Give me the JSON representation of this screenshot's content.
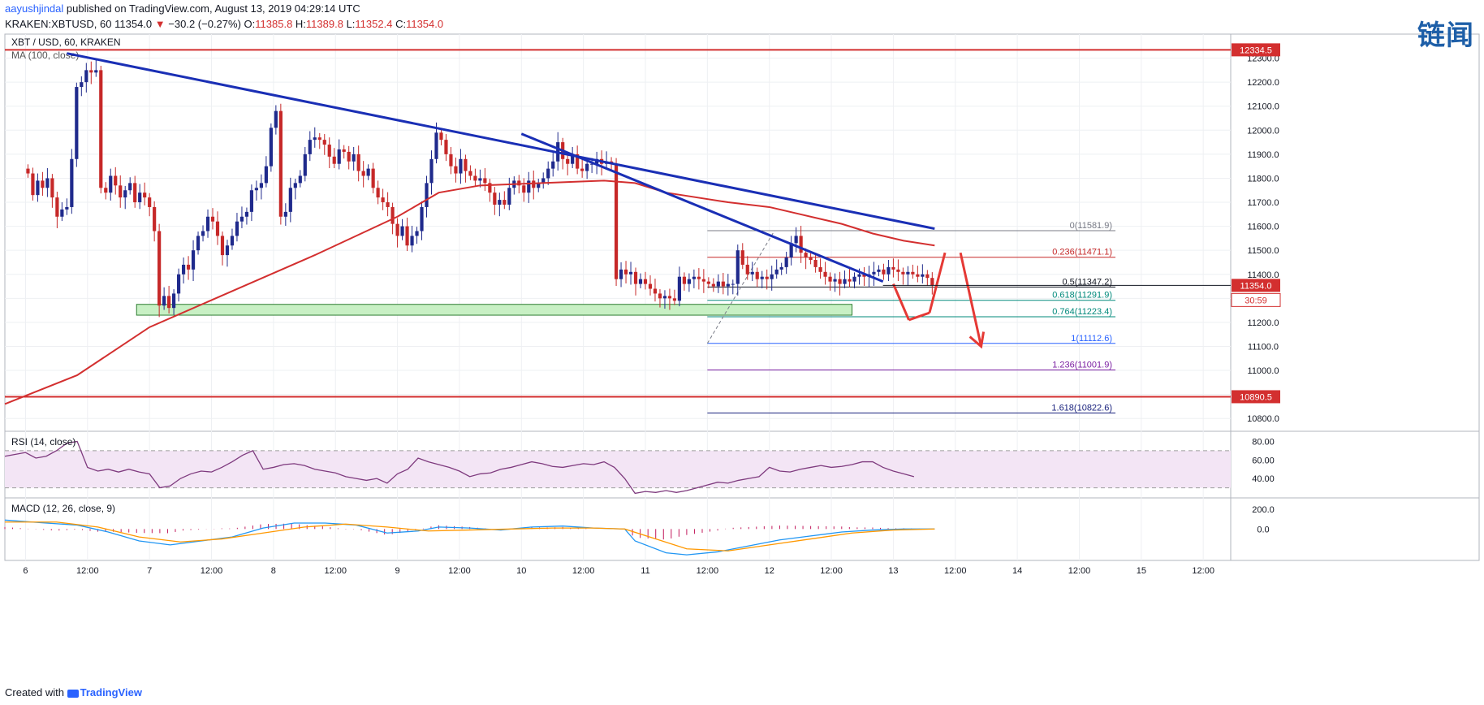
{
  "header": {
    "author": "aayushjindal",
    "published_text": "published on TradingView.com, August 13, 2019 04:29:14 UTC",
    "symbol": "KRAKEN:XBTUSD, 60",
    "last_price": "11354.0",
    "change_arrow": "▼",
    "change_text": "−30.2 (−0.27%)",
    "o_label": "O:",
    "o_value": "11385.8",
    "h_label": "H:",
    "h_value": "11389.8",
    "l_label": "L:",
    "l_value": "11352.4",
    "c_label": "C:",
    "c_value": "11354.0"
  },
  "watermark": "链闻",
  "footer": {
    "created_with": "Created with",
    "brand": "TradingView"
  },
  "chart_data": {
    "type": "candlestick",
    "title": "XBT / USD, 60, KRAKEN",
    "overlay_label": "MA (100, close)",
    "ylim": [
      10750,
      12400
    ],
    "y_ticks": [
      10800,
      10900,
      11000,
      11100,
      11200,
      11300,
      11400,
      11500,
      11600,
      11700,
      11800,
      11900,
      12000,
      12100,
      12200,
      12300
    ],
    "x_ticks": [
      "6",
      "12:00",
      "7",
      "12:00",
      "8",
      "12:00",
      "9",
      "12:00",
      "10",
      "12:00",
      "11",
      "12:00",
      "12",
      "12:00",
      "13",
      "12:00",
      "14",
      "12:00",
      "15",
      "12:00"
    ],
    "x_tick_hours": [
      0,
      12,
      24,
      36,
      48,
      60,
      72,
      84,
      96,
      108,
      120,
      132,
      144,
      156,
      168,
      180,
      192,
      204,
      216,
      228
    ],
    "hour_range": [
      -4,
      233
    ],
    "candle_closes": [
      11820,
      11730,
      11790,
      11760,
      11800,
      11720,
      11640,
      11670,
      11680,
      11880,
      12180,
      12200,
      12250,
      12240,
      12250,
      11760,
      11740,
      11810,
      11770,
      11720,
      11750,
      11780,
      11700,
      11740,
      11720,
      11680,
      11580,
      11270,
      11310,
      11260,
      11320,
      11400,
      11440,
      11420,
      11500,
      11560,
      11580,
      11640,
      11620,
      11560,
      11480,
      11520,
      11560,
      11620,
      11640,
      11660,
      11750,
      11760,
      11780,
      11850,
      12010,
      12080,
      11640,
      11660,
      11760,
      11780,
      11810,
      11900,
      11960,
      11970,
      11960,
      11940,
      11890,
      11860,
      11920,
      11910,
      11870,
      11900,
      11830,
      11810,
      11840,
      11760,
      11720,
      11700,
      11680,
      11610,
      11560,
      11600,
      11520,
      11560,
      11580,
      11680,
      11780,
      11880,
      11990,
      11960,
      11900,
      11850,
      11820,
      11880,
      11830,
      11810,
      11790,
      11800,
      11780,
      11740,
      11690,
      11710,
      11690,
      11760,
      11790,
      11770,
      11740,
      11790,
      11760,
      11780,
      11800,
      11840,
      11870,
      11950,
      11880,
      11860,
      11900,
      11840,
      11830,
      11860,
      11860,
      11880,
      11860,
      11870,
      11860,
      11380,
      11420,
      11400,
      11410,
      11360,
      11380,
      11360,
      11340,
      11320,
      11300,
      11310,
      11300,
      11290,
      11390,
      11360,
      11380,
      11390,
      11380,
      11370,
      11360,
      11350,
      11370,
      11350,
      11360,
      11360,
      11500,
      11440,
      11400,
      11410,
      11380,
      11390,
      11380,
      11400,
      11420,
      11430,
      11470,
      11530,
      11560,
      11490,
      11470,
      11460,
      11430,
      11410,
      11390,
      11370,
      11380,
      11360,
      11380,
      11370,
      11390,
      11400,
      11390,
      11400,
      11410,
      11420,
      11400,
      11430,
      11420,
      11410,
      11400,
      11410,
      11400,
      11390,
      11400,
      11385,
      11354
    ],
    "ma100": [
      [
        -4,
        10860
      ],
      [
        10,
        10980
      ],
      [
        24,
        11180
      ],
      [
        40,
        11330
      ],
      [
        56,
        11480
      ],
      [
        72,
        11640
      ],
      [
        80,
        11740
      ],
      [
        88,
        11770
      ],
      [
        100,
        11780
      ],
      [
        112,
        11790
      ],
      [
        118,
        11780
      ],
      [
        124,
        11740
      ],
      [
        136,
        11700
      ],
      [
        144,
        11680
      ],
      [
        150,
        11650
      ],
      [
        158,
        11610
      ],
      [
        164,
        11570
      ],
      [
        170,
        11540
      ],
      [
        176,
        11520
      ]
    ],
    "rsi_label": "RSI (14, close)",
    "rsi_ticks": [
      40,
      60,
      80
    ],
    "rsi_bands": [
      30,
      70
    ],
    "rsi_values": [
      [
        -4,
        64
      ],
      [
        0,
        68
      ],
      [
        2,
        62
      ],
      [
        4,
        64
      ],
      [
        6,
        70
      ],
      [
        8,
        78
      ],
      [
        10,
        80
      ],
      [
        12,
        52
      ],
      [
        14,
        48
      ],
      [
        16,
        50
      ],
      [
        18,
        47
      ],
      [
        20,
        50
      ],
      [
        22,
        47
      ],
      [
        24,
        45
      ],
      [
        26,
        30
      ],
      [
        28,
        32
      ],
      [
        30,
        40
      ],
      [
        32,
        45
      ],
      [
        34,
        48
      ],
      [
        36,
        47
      ],
      [
        38,
        52
      ],
      [
        40,
        58
      ],
      [
        42,
        65
      ],
      [
        44,
        70
      ],
      [
        46,
        50
      ],
      [
        48,
        52
      ],
      [
        50,
        55
      ],
      [
        52,
        56
      ],
      [
        54,
        54
      ],
      [
        56,
        50
      ],
      [
        58,
        48
      ],
      [
        60,
        46
      ],
      [
        62,
        42
      ],
      [
        64,
        40
      ],
      [
        66,
        38
      ],
      [
        68,
        40
      ],
      [
        70,
        35
      ],
      [
        72,
        45
      ],
      [
        74,
        50
      ],
      [
        76,
        62
      ],
      [
        78,
        58
      ],
      [
        80,
        55
      ],
      [
        82,
        52
      ],
      [
        84,
        48
      ],
      [
        86,
        42
      ],
      [
        88,
        45
      ],
      [
        90,
        46
      ],
      [
        92,
        50
      ],
      [
        94,
        52
      ],
      [
        96,
        55
      ],
      [
        98,
        58
      ],
      [
        100,
        56
      ],
      [
        102,
        53
      ],
      [
        104,
        52
      ],
      [
        106,
        54
      ],
      [
        108,
        56
      ],
      [
        110,
        55
      ],
      [
        112,
        58
      ],
      [
        114,
        52
      ],
      [
        116,
        40
      ],
      [
        118,
        24
      ],
      [
        120,
        26
      ],
      [
        122,
        25
      ],
      [
        124,
        27
      ],
      [
        126,
        25
      ],
      [
        128,
        27
      ],
      [
        130,
        30
      ],
      [
        132,
        33
      ],
      [
        134,
        36
      ],
      [
        136,
        35
      ],
      [
        138,
        38
      ],
      [
        140,
        40
      ],
      [
        142,
        42
      ],
      [
        144,
        52
      ],
      [
        146,
        48
      ],
      [
        148,
        47
      ],
      [
        150,
        50
      ],
      [
        152,
        52
      ],
      [
        154,
        54
      ],
      [
        156,
        52
      ],
      [
        158,
        53
      ],
      [
        160,
        55
      ],
      [
        162,
        58
      ],
      [
        164,
        58
      ],
      [
        166,
        52
      ],
      [
        168,
        48
      ],
      [
        170,
        45
      ],
      [
        172,
        42
      ]
    ],
    "macd_label": "MACD (12, 26, close, 9)",
    "macd_ticks": [
      0,
      200
    ],
    "macd_line": [
      [
        -4,
        90
      ],
      [
        4,
        60
      ],
      [
        10,
        40
      ],
      [
        16,
        -30
      ],
      [
        22,
        -120
      ],
      [
        28,
        -160
      ],
      [
        34,
        -120
      ],
      [
        40,
        -80
      ],
      [
        46,
        10
      ],
      [
        52,
        60
      ],
      [
        58,
        60
      ],
      [
        64,
        40
      ],
      [
        70,
        -40
      ],
      [
        76,
        -20
      ],
      [
        80,
        20
      ],
      [
        86,
        10
      ],
      [
        92,
        -10
      ],
      [
        98,
        20
      ],
      [
        104,
        30
      ],
      [
        110,
        10
      ],
      [
        116,
        0
      ],
      [
        118,
        -120
      ],
      [
        124,
        -240
      ],
      [
        128,
        -260
      ],
      [
        134,
        -230
      ],
      [
        140,
        -170
      ],
      [
        146,
        -110
      ],
      [
        152,
        -70
      ],
      [
        158,
        -30
      ],
      [
        164,
        -10
      ],
      [
        170,
        0
      ],
      [
        176,
        0
      ]
    ],
    "signal_line": [
      [
        -4,
        70
      ],
      [
        6,
        70
      ],
      [
        14,
        20
      ],
      [
        22,
        -80
      ],
      [
        30,
        -130
      ],
      [
        38,
        -100
      ],
      [
        46,
        -40
      ],
      [
        54,
        20
      ],
      [
        62,
        50
      ],
      [
        70,
        20
      ],
      [
        78,
        -20
      ],
      [
        86,
        -10
      ],
      [
        94,
        0
      ],
      [
        102,
        10
      ],
      [
        110,
        10
      ],
      [
        116,
        0
      ],
      [
        122,
        -100
      ],
      [
        128,
        -200
      ],
      [
        136,
        -220
      ],
      [
        144,
        -160
      ],
      [
        152,
        -100
      ],
      [
        160,
        -40
      ],
      [
        168,
        -10
      ],
      [
        176,
        0
      ]
    ],
    "annotations": {
      "resistance_top": "12334.5",
      "support_bottom": "10890.5",
      "price_tag": "11354.0",
      "timer_tag": "30:59",
      "fib_levels": [
        {
          "label": "0(11581.9)",
          "value": 11581.9,
          "color": "#787b86"
        },
        {
          "label": "0.236(11471.1)",
          "value": 11471.1,
          "color": "#c62828"
        },
        {
          "label": "0.5(11347.2)",
          "value": 11347.2,
          "color": "#131722"
        },
        {
          "label": "0.618(11291.9)",
          "value": 11291.9,
          "color": "#00897b"
        },
        {
          "label": "0.764(11223.4)",
          "value": 11223.4,
          "color": "#00897b"
        },
        {
          "label": "1(11112.6)",
          "value": 11112.6,
          "color": "#2962ff"
        },
        {
          "label": "1.236(11001.9)",
          "value": 11001.9,
          "color": "#7b1fa2"
        },
        {
          "label": "1.618(10822.6)",
          "value": 10822.6,
          "color": "#1a237e"
        }
      ],
      "support_zone": [
        11230,
        11275
      ],
      "trendlines": [
        {
          "from": [
            8,
            12320
          ],
          "to": [
            176,
            11590
          ],
          "color": "#1a2fb5"
        },
        {
          "from": [
            96,
            11985
          ],
          "to": [
            166,
            11370
          ],
          "color": "#1a2fb5"
        }
      ],
      "horizontal_lines": [
        12334.5,
        10890.5
      ]
    },
    "colors": {
      "up": "#1f2a8c",
      "down": "#c62828",
      "ma": "#d32f2f",
      "rsi": "#7e3a7e",
      "rsi_band_fill": "#f3e5f5",
      "macd": "#2196f3",
      "signal": "#ff9800",
      "hist": "#c2185b",
      "zone_fill": "#c8f0c4",
      "zone_border": "#2e7d32"
    }
  }
}
